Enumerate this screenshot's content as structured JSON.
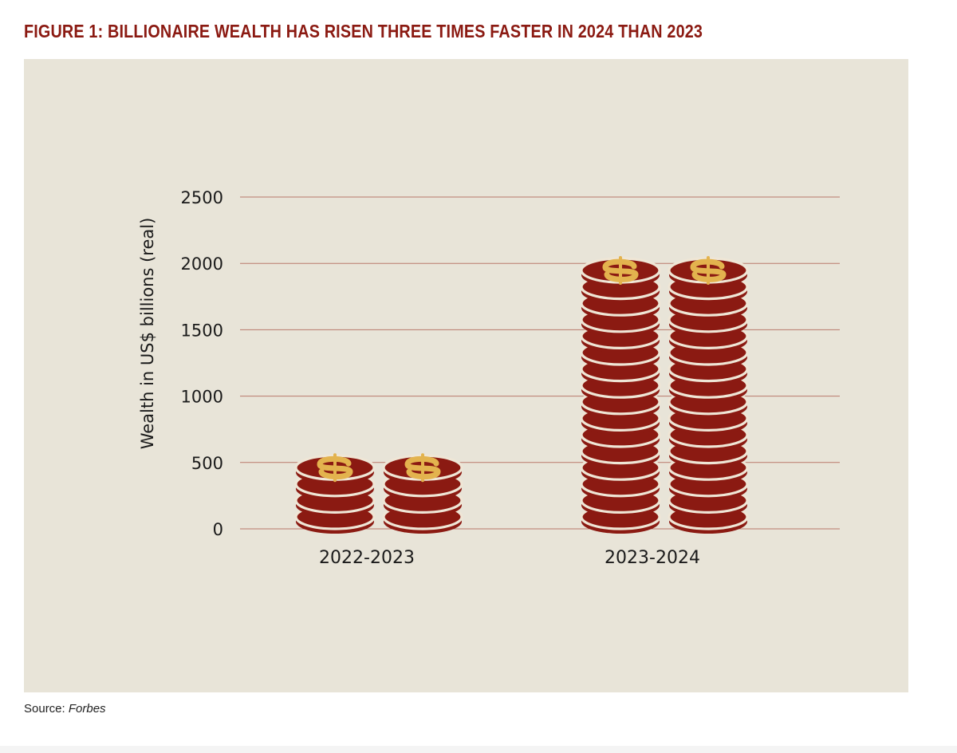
{
  "figure": {
    "title": "FIGURE 1: BILLIONAIRE WEALTH HAS RISEN THREE TIMES FASTER IN 2024 THAN 2023",
    "source_prefix": "Source: ",
    "source_name": "Forbes"
  },
  "colors": {
    "title": "#8b1a12",
    "panel_bg": "#e8e4d8",
    "coin": "#8b1a12",
    "coin_separator": "#efe6d6",
    "dollar_sign": "#e3b34e",
    "gridline": "#b9786a"
  },
  "icons": {
    "coin": "coin-stack-icon",
    "symbol": "dollar-sign-icon"
  },
  "chart_data": {
    "type": "bar",
    "style": "pictogram coin stacks, two stacks per category",
    "title": "FIGURE 1: BILLIONAIRE WEALTH HAS RISEN THREE TIMES FASTER IN 2024 THAN 2023",
    "xlabel": "",
    "ylabel": "Wealth in US$ billions (real)",
    "categories": [
      "2022-2023",
      "2023-2024"
    ],
    "values": [
      520,
      2030
    ],
    "ylim": [
      0,
      2500
    ],
    "yticks": [
      0,
      500,
      1000,
      1500,
      2000,
      2500
    ],
    "grid": true,
    "legend": "none"
  }
}
